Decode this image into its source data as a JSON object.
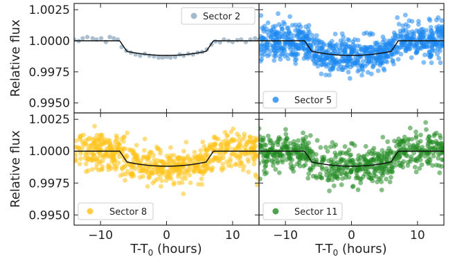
{
  "figure": {
    "ylabel": "Relative flux",
    "xlabel_main": "T-T",
    "xlabel_sub": "0",
    "xlabel_tail": " (hours)"
  },
  "chart_data": [
    {
      "type": "scatter",
      "legend": "Sector 2",
      "legend_placement": "top-right",
      "color": "#8fa9bd",
      "xlim": [
        -14,
        14
      ],
      "ylim": [
        0.9942,
        1.003
      ],
      "xticks": [
        -10,
        0,
        10
      ],
      "yticks": [
        0.995,
        0.9975,
        1.0,
        1.0025
      ],
      "ytick_labels": [
        "0.9950",
        "0.9975",
        "1.0000",
        "1.0025"
      ],
      "points": [
        {
          "x": -14.0,
          "y": 1.0001
        },
        {
          "x": -13.3,
          "y": 0.99998
        },
        {
          "x": -12.7,
          "y": 1.0002
        },
        {
          "x": -12.0,
          "y": 1.0003
        },
        {
          "x": -11.2,
          "y": 1.0002
        },
        {
          "x": -10.6,
          "y": 1.0001
        },
        {
          "x": -9.9,
          "y": 1.0002
        },
        {
          "x": -9.2,
          "y": 0.9999
        },
        {
          "x": -8.6,
          "y": 1.0003
        },
        {
          "x": -8.0,
          "y": 1.0002
        },
        {
          "x": -7.4,
          "y": 1.0001
        },
        {
          "x": -6.8,
          "y": 0.9995
        },
        {
          "x": -6.1,
          "y": 0.9992
        },
        {
          "x": -5.4,
          "y": 0.99905
        },
        {
          "x": -4.7,
          "y": 0.9989
        },
        {
          "x": -4.0,
          "y": 0.9988
        },
        {
          "x": -3.3,
          "y": 0.99895
        },
        {
          "x": -2.6,
          "y": 0.9988
        },
        {
          "x": -1.9,
          "y": 0.99875
        },
        {
          "x": -1.2,
          "y": 0.99865
        },
        {
          "x": -0.6,
          "y": 0.99865
        },
        {
          "x": 0.0,
          "y": 0.9987
        },
        {
          "x": 0.6,
          "y": 0.99865
        },
        {
          "x": 1.3,
          "y": 0.9987
        },
        {
          "x": 2.0,
          "y": 0.9989
        },
        {
          "x": 2.6,
          "y": 0.9988
        },
        {
          "x": 3.3,
          "y": 0.99895
        },
        {
          "x": 4.0,
          "y": 0.9989
        },
        {
          "x": 4.7,
          "y": 0.99905
        },
        {
          "x": 5.4,
          "y": 0.9991
        },
        {
          "x": 6.1,
          "y": 0.9993
        },
        {
          "x": 6.8,
          "y": 0.9997
        },
        {
          "x": 7.4,
          "y": 0.99995
        },
        {
          "x": 8.1,
          "y": 0.99988
        },
        {
          "x": 8.7,
          "y": 1.0001
        },
        {
          "x": 9.4,
          "y": 1.0
        },
        {
          "x": 10.0,
          "y": 0.9999
        },
        {
          "x": 10.7,
          "y": 1.00005
        },
        {
          "x": 11.3,
          "y": 1.0001
        },
        {
          "x": 12.0,
          "y": 0.9999
        },
        {
          "x": 12.7,
          "y": 1.0001
        },
        {
          "x": 13.4,
          "y": 1.0002
        },
        {
          "x": 14.0,
          "y": 1.0001
        }
      ]
    },
    {
      "type": "scatter",
      "legend": "Sector 5",
      "legend_placement": "bottom-left",
      "color": "#1e88f0",
      "xlim": [
        -14,
        14
      ],
      "ylim": [
        0.9942,
        1.003
      ],
      "xticks": [
        -10,
        0,
        10
      ],
      "yticks": [
        0.995,
        0.9975,
        1.0,
        1.0025
      ],
      "ytick_labels": [
        "0.9950",
        "0.9975",
        "1.0000",
        "1.0025"
      ],
      "noise": {
        "n_points": 850,
        "scatter_sigma": 0.00075,
        "seed": 5
      }
    },
    {
      "type": "scatter",
      "legend": "Sector 8",
      "legend_placement": "bottom-left",
      "color": "#ffc21a",
      "xlim": [
        -14,
        14
      ],
      "ylim": [
        0.9942,
        1.003
      ],
      "xticks": [
        -10,
        0,
        10
      ],
      "yticks": [
        0.995,
        0.9975,
        1.0,
        1.0025
      ],
      "ytick_labels": [
        "0.9950",
        "0.9975",
        "1.0000",
        "1.0025"
      ],
      "noise": {
        "n_points": 650,
        "scatter_sigma": 0.00075,
        "seed": 8
      }
    },
    {
      "type": "scatter",
      "legend": "Sector 11",
      "legend_placement": "bottom-left",
      "color": "#228b22",
      "xlim": [
        -14,
        14
      ],
      "ylim": [
        0.9942,
        1.003
      ],
      "xticks": [
        -10,
        0,
        10
      ],
      "yticks": [
        0.995,
        0.9975,
        1.0,
        1.0025
      ],
      "ytick_labels": [
        "0.9950",
        "0.9975",
        "1.0000",
        "1.0025"
      ],
      "noise": {
        "n_points": 650,
        "scatter_sigma": 0.00075,
        "seed": 11
      }
    }
  ],
  "model": {
    "color": "#111111",
    "baseline": 1.0,
    "ingress_start": -7.1,
    "ingress_end": -6.0,
    "egress_start": 6.0,
    "egress_end": 7.1,
    "depth_center": 0.99882,
    "depth_edge": 0.99915
  }
}
